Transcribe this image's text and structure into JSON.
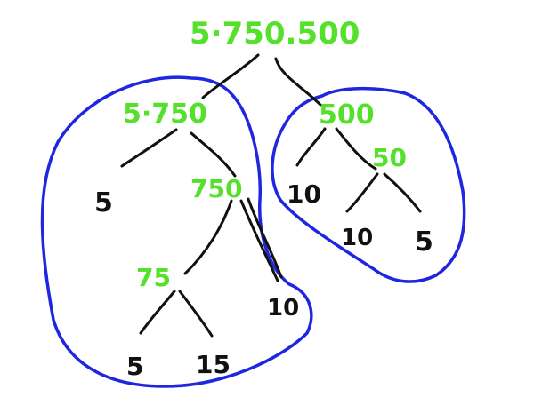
{
  "diagram": {
    "type": "factor-tree",
    "root": "5·750.500",
    "left_branch": {
      "value": "5·750",
      "children": [
        "5",
        "750"
      ],
      "750": {
        "children": [
          "75",
          "10"
        ]
      },
      "75": {
        "children": [
          "5",
          "15"
        ]
      }
    },
    "right_branch": {
      "value": "500",
      "children": [
        "10",
        "50"
      ],
      "50": {
        "children": [
          "10",
          "5"
        ]
      }
    },
    "colors": {
      "composite": "#55e12b",
      "prime_leaf": "#111111",
      "circle": "#1f26e0"
    }
  }
}
